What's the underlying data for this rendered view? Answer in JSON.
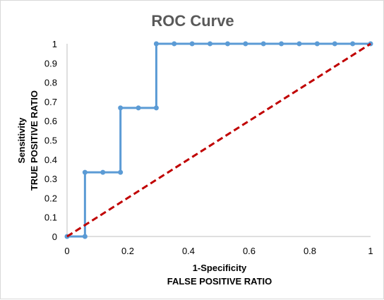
{
  "chart_data": {
    "type": "line",
    "title": "ROC Curve",
    "xlabel": "1-Specificity",
    "xlabel_sub": "FALSE POSITIVE RATIO",
    "ylabel": "Sensitivity",
    "ylabel_sub": "TRUE POSITIVE RATIO",
    "xlim": [
      0,
      1
    ],
    "ylim": [
      0,
      1
    ],
    "x_ticks": [
      "0",
      "0.2",
      "0.4",
      "0.6",
      "0.8",
      "1"
    ],
    "y_ticks": [
      "0",
      "0.1",
      "0.2",
      "0.3",
      "0.4",
      "0.5",
      "0.6",
      "0.7",
      "0.8",
      "0.9",
      "1"
    ],
    "grid": false,
    "legend": "none",
    "series": [
      {
        "style": "line-markers",
        "color": "#5b9bd5",
        "points": [
          [
            0,
            0
          ],
          [
            0.059,
            0
          ],
          [
            0.059,
            0.333
          ],
          [
            0.118,
            0.333
          ],
          [
            0.176,
            0.333
          ],
          [
            0.176,
            0.667
          ],
          [
            0.235,
            0.667
          ],
          [
            0.294,
            0.667
          ],
          [
            0.294,
            1
          ],
          [
            0.353,
            1
          ],
          [
            0.412,
            1
          ],
          [
            0.471,
            1
          ],
          [
            0.529,
            1
          ],
          [
            0.588,
            1
          ],
          [
            0.647,
            1
          ],
          [
            0.706,
            1
          ],
          [
            0.765,
            1
          ],
          [
            0.824,
            1
          ],
          [
            0.882,
            1
          ],
          [
            0.941,
            1
          ],
          [
            1,
            1
          ]
        ]
      },
      {
        "style": "dashed",
        "color": "#c00000",
        "points": [
          [
            0,
            0
          ],
          [
            1,
            1
          ]
        ]
      }
    ]
  }
}
